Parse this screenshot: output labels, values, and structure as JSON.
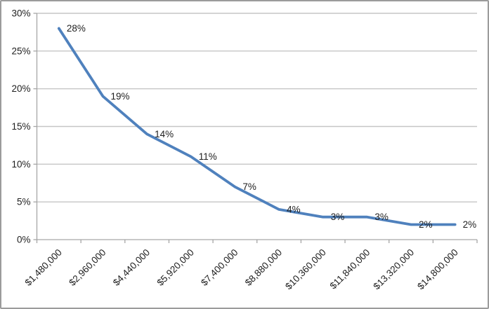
{
  "chart_data": {
    "type": "line",
    "title": "",
    "xlabel": "",
    "ylabel": "",
    "categories": [
      "$1,480,000",
      "$2,960,000",
      "$4,440,000",
      "$5,920,000",
      "$7,400,000",
      "$8,880,000",
      "$10,360,000",
      "$11,840,000",
      "$13,320,000",
      "$14,800,000"
    ],
    "values": [
      28,
      19,
      14,
      11,
      7,
      4,
      3,
      3,
      2,
      2
    ],
    "value_labels": [
      "28%",
      "19%",
      "14%",
      "11%",
      "7%",
      "4%",
      "3%",
      "3%",
      "2%",
      "2%"
    ],
    "ylim": [
      0,
      30
    ],
    "y_tick_step": 5,
    "y_tick_labels": [
      "0%",
      "5%",
      "10%",
      "15%",
      "20%",
      "25%",
      "30%"
    ],
    "grid": true,
    "legend": "none",
    "x_label_rotation_deg": 45,
    "colors": {
      "line": "#4F81BD",
      "gridline": "#C6C6C6",
      "axis": "#A6A6A6",
      "text": "#1E1E1E",
      "frame_border": "#9B9B9B",
      "background": "#FFFFFF"
    }
  }
}
